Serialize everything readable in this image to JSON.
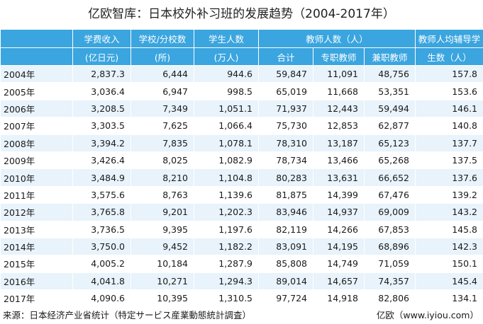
{
  "title": "亿欧智库：日本校外补习班的发展趋势（2004-2017年）",
  "header": {
    "tuition_top": "学费收入",
    "tuition_bottom": "(亿日元)",
    "schools_top": "学校/分校数",
    "schools_bottom": "(所)",
    "students_top": "学生人数",
    "students_bottom": "(万人)",
    "teachers_top": "教师人数（人）",
    "teachers_total": "合计",
    "teachers_fulltime": "专职教师",
    "teachers_parttime": "兼职教师",
    "ratio_top": "教师人均辅导学",
    "ratio_bottom": "生数（人）"
  },
  "rows": [
    {
      "year": "2004年",
      "tuition": "2,837.3",
      "schools": "6,444",
      "students": "944.6",
      "total": "59,847",
      "fulltime": "11,091",
      "parttime": "48,756",
      "ratio": "157.8"
    },
    {
      "year": "2005年",
      "tuition": "3,036.4",
      "schools": "6,947",
      "students": "998.5",
      "total": "65,019",
      "fulltime": "11,668",
      "parttime": "53,351",
      "ratio": "153.6"
    },
    {
      "year": "2006年",
      "tuition": "3,208.5",
      "schools": "7,349",
      "students": "1,051.1",
      "total": "71,937",
      "fulltime": "12,443",
      "parttime": "59,494",
      "ratio": "146.1"
    },
    {
      "year": "2007年",
      "tuition": "3,303.5",
      "schools": "7,625",
      "students": "1,066.4",
      "total": "75,730",
      "fulltime": "12,853",
      "parttime": "62,877",
      "ratio": "140.8"
    },
    {
      "year": "2008年",
      "tuition": "3,394.2",
      "schools": "7,835",
      "students": "1,078.1",
      "total": "78,310",
      "fulltime": "13,187",
      "parttime": "65,123",
      "ratio": "137.7"
    },
    {
      "year": "2009年",
      "tuition": "3,426.4",
      "schools": "8,025",
      "students": "1,082.9",
      "total": "78,734",
      "fulltime": "13,466",
      "parttime": "65,268",
      "ratio": "137.5"
    },
    {
      "year": "2010年",
      "tuition": "3,484.9",
      "schools": "8,210",
      "students": "1,104.8",
      "total": "80,283",
      "fulltime": "13,631",
      "parttime": "66,652",
      "ratio": "137.6"
    },
    {
      "year": "2011年",
      "tuition": "3,575.6",
      "schools": "8,763",
      "students": "1,139.6",
      "total": "81,875",
      "fulltime": "14,399",
      "parttime": "67,476",
      "ratio": "139.2"
    },
    {
      "year": "2012年",
      "tuition": "3,765.8",
      "schools": "9,201",
      "students": "1,202.3",
      "total": "83,946",
      "fulltime": "14,937",
      "parttime": "69,009",
      "ratio": "143.2"
    },
    {
      "year": "2013年",
      "tuition": "3,736.5",
      "schools": "9,395",
      "students": "1,197.6",
      "total": "82,119",
      "fulltime": "14,266",
      "parttime": "67,853",
      "ratio": "145.8"
    },
    {
      "year": "2014年",
      "tuition": "3,750.0",
      "schools": "9,452",
      "students": "1,182.2",
      "total": "83,091",
      "fulltime": "14,195",
      "parttime": "68,896",
      "ratio": "142.3"
    },
    {
      "year": "2015年",
      "tuition": "4,005.2",
      "schools": "10,184",
      "students": "1,287.9",
      "total": "85,808",
      "fulltime": "14,749",
      "parttime": "71,059",
      "ratio": "150.1"
    },
    {
      "year": "2016年",
      "tuition": "4,041.8",
      "schools": "10,271",
      "students": "1,294.3",
      "total": "89,014",
      "fulltime": "14,657",
      "parttime": "74,357",
      "ratio": "145.4"
    },
    {
      "year": "2017年",
      "tuition": "4,090.6",
      "schools": "10,395",
      "students": "1,310.5",
      "total": "97,724",
      "fulltime": "14,918",
      "parttime": "82,806",
      "ratio": "134.1"
    }
  ],
  "footer": {
    "source": "来源：日本经济产业省统计（特定サービス産業動態統計調査）",
    "brand": "亿欧（www.iyiou.com）"
  }
}
